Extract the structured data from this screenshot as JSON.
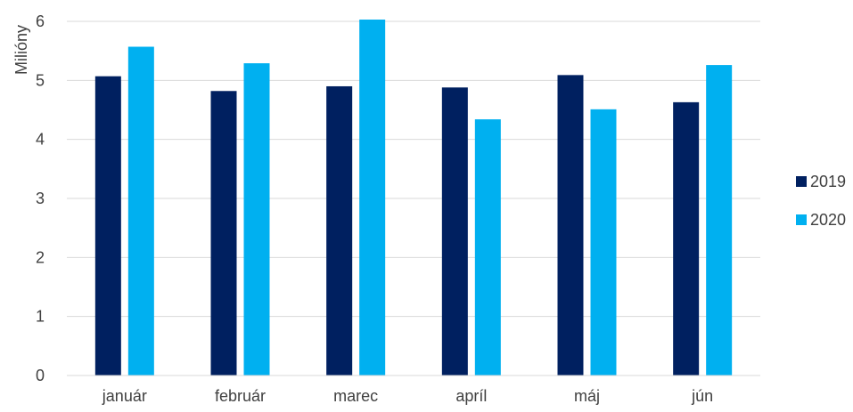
{
  "chart_data": {
    "type": "bar",
    "title": "",
    "xlabel": "",
    "ylabel": "Milióny",
    "categories": [
      "január",
      "február",
      "marec",
      "apríl",
      "máj",
      "jún"
    ],
    "series": [
      {
        "name": "2019",
        "color": "#002060",
        "values": [
          5.07,
          4.82,
          4.9,
          4.88,
          5.09,
          4.63
        ]
      },
      {
        "name": "2020",
        "color": "#00B0F0",
        "values": [
          5.57,
          5.29,
          6.03,
          4.34,
          4.51,
          5.26
        ]
      }
    ],
    "ylim": [
      0,
      6
    ],
    "yticks": [
      0,
      1,
      2,
      3,
      4,
      5,
      6
    ],
    "grid": true,
    "legend_position": "right"
  }
}
